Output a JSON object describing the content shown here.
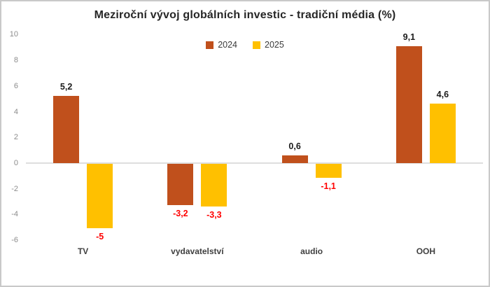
{
  "window": {
    "background": "#ffffff",
    "border_color": "#c9c9c9"
  },
  "chart_data": {
    "type": "bar",
    "title": "Meziroční vývoj globálních investic - tradiční média (%)",
    "categories": [
      "TV",
      "vydavatelství",
      "audio",
      "OOH"
    ],
    "series": [
      {
        "name": "2024",
        "color": "#C0501C",
        "values": [
          5.2,
          -3.2,
          0.6,
          9.1
        ],
        "labels": [
          "5,2",
          "-3,2",
          "0,6",
          "9,1"
        ]
      },
      {
        "name": "2025",
        "color": "#FFC000",
        "values": [
          -5,
          -3.3,
          -1.1,
          4.6
        ],
        "labels": [
          "-5",
          "-3,3",
          "-1,1",
          "4,6"
        ]
      }
    ],
    "y_ticks": [
      10,
      8,
      6,
      4,
      2,
      0,
      -2,
      -4,
      -6
    ],
    "ylim": [
      -6.5,
      10.5
    ],
    "xlabel": "",
    "ylabel": "",
    "grid": false,
    "legend_position": "top-center",
    "value_label_colors": {
      "positive": "#1a1a1a",
      "negative": "#ff0000"
    },
    "axis_label_color": "#8c8c8c",
    "category_label_color": "#404040",
    "zero_line_color": "#dedede"
  }
}
